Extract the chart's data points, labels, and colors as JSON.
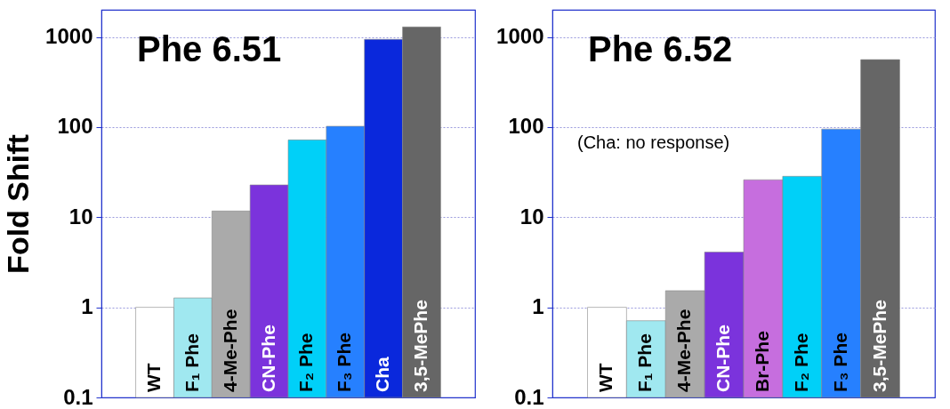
{
  "chart_data": [
    {
      "type": "bar",
      "title": "Phe 6.51",
      "ylabel": "Fold Shift",
      "categories": [
        "WT",
        "F₁ Phe",
        "4-Me-Phe",
        "CN-Phe",
        "F₂ Phe",
        "F₃ Phe",
        "Cha",
        "3,5-MePhe"
      ],
      "values": [
        1,
        1.27,
        11.7,
        22.8,
        72,
        102,
        940,
        1290
      ],
      "colors": [
        "#ffffff",
        "#a0e8f0",
        "#aaaaaa",
        "#7b33dc",
        "#00d0f8",
        "#2680ff",
        "#0a28dc",
        "#666666"
      ],
      "ylim": [
        0.1,
        2000
      ],
      "yticks": [
        0.1,
        1,
        10,
        100,
        1000
      ],
      "log": true,
      "grid": "y"
    },
    {
      "type": "bar",
      "title": "Phe 6.52",
      "annotations": [
        "(Cha: no response)"
      ],
      "categories": [
        "WT",
        "F₁ Phe",
        "4-Me-Phe",
        "CN-Phe",
        "Br-Phe",
        "F₂ Phe",
        "F₃ Phe",
        "3,5-MePhe"
      ],
      "values": [
        1,
        0.71,
        1.53,
        4.1,
        26,
        28.4,
        95,
        560
      ],
      "colors": [
        "#ffffff",
        "#a0e8f0",
        "#aaaaaa",
        "#7b33dc",
        "#c66ede",
        "#00d0f8",
        "#2680ff",
        "#666666"
      ],
      "ylim": [
        0.1,
        2000
      ],
      "yticks": [
        0.1,
        1,
        10,
        100,
        1000
      ],
      "log": true,
      "grid": "y"
    }
  ]
}
